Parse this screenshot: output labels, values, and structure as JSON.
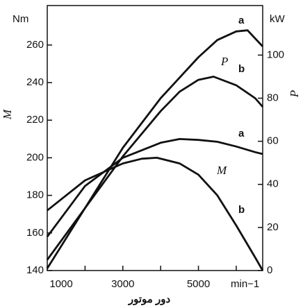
{
  "chart_data": {
    "type": "line",
    "y_unit": "Nm",
    "y2_unit": "kW",
    "x_unit": "min−1",
    "ylabel": "M",
    "y2label": "P",
    "xlabel": "دور موتور",
    "annotations": [
      "P",
      "M"
    ],
    "series": [
      {
        "name": "a",
        "color": "#111111",
        "axis": "y2",
        "x": [
          1000,
          2000,
          3000,
          4000,
          5000,
          5500,
          6000,
          6300,
          6700
        ],
        "values": [
          1,
          29,
          57,
          80,
          99,
          107,
          111,
          111.5,
          104
        ]
      },
      {
        "name": "b",
        "color": "#111111",
        "axis": "y2",
        "x": [
          1000,
          2000,
          3000,
          4000,
          4500,
          5000,
          5400,
          6000,
          6500,
          6700
        ],
        "values": [
          5,
          29,
          53,
          74,
          83,
          88.5,
          90,
          86,
          80,
          76
        ]
      },
      {
        "name": "a",
        "color": "#111111",
        "x": [
          1000,
          2000,
          3000,
          4000,
          4500,
          5000,
          5500,
          6000,
          6500,
          6700
        ],
        "values": [
          158,
          185,
          200,
          208,
          210,
          209.5,
          208.5,
          206,
          203,
          202
        ]
      },
      {
        "name": "b",
        "color": "#111111",
        "x": [
          1000,
          2000,
          3000,
          3500,
          3900,
          4500,
          5000,
          5500,
          6000,
          6500,
          6700
        ],
        "values": [
          172,
          188,
          197,
          199.5,
          200,
          197,
          191,
          180,
          164,
          147,
          140
        ]
      }
    ],
    "xlim": [
      1000,
      6700
    ],
    "xticks": [
      1000,
      3000,
      5000
    ],
    "xminorticks": [
      2000,
      4000,
      6000
    ],
    "ylim": [
      140,
      281
    ],
    "yticks": [
      140,
      160,
      180,
      200,
      220,
      240,
      260
    ],
    "y2lim": [
      0,
      123
    ],
    "y2ticks": [
      0,
      20,
      40,
      60,
      80,
      100
    ]
  }
}
